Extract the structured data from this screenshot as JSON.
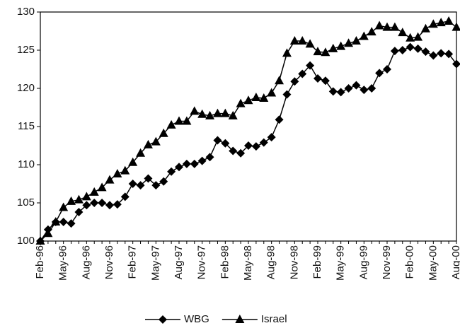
{
  "chart_data": {
    "type": "line",
    "categories": [
      "Feb-96",
      null,
      null,
      "May-96",
      null,
      null,
      "Aug-96",
      null,
      null,
      "Nov-96",
      null,
      null,
      "Feb-97",
      null,
      null,
      "May-97",
      null,
      null,
      "Aug-97",
      null,
      null,
      "Nov-97",
      null,
      null,
      "Feb-98",
      null,
      null,
      "May-98",
      null,
      null,
      "Aug-98",
      null,
      null,
      "Nov-98",
      null,
      null,
      "Feb-99",
      null,
      null,
      "May-99",
      null,
      null,
      "Aug-99",
      null,
      null,
      "Nov-99",
      null,
      null,
      "Feb-00",
      null,
      null,
      "May-00",
      null,
      null,
      "Aug-00"
    ],
    "series": [
      {
        "name": "WBG",
        "color": "#000000",
        "marker": "diamond",
        "values": [
          100,
          101.5,
          102.5,
          102.5,
          102.3,
          103.8,
          104.7,
          105,
          105,
          104.7,
          104.8,
          105.8,
          107.5,
          107.3,
          108.2,
          107.3,
          107.8,
          109.1,
          109.7,
          110.1,
          110.1,
          110.5,
          111,
          113.2,
          112.8,
          111.8,
          111.5,
          112.5,
          112.4,
          112.9,
          113.6,
          115.9,
          119.2,
          120.9,
          121.9,
          123,
          121.3,
          121,
          119.6,
          119.5,
          120,
          120.4,
          119.8,
          120,
          122,
          122.5,
          124.9,
          125,
          125.4,
          125.2,
          124.8,
          124.3,
          124.6,
          124.5,
          123.2
        ]
      },
      {
        "name": "Israel",
        "color": "#000000",
        "marker": "triangle",
        "values": [
          100,
          101,
          102.5,
          104.4,
          105.2,
          105.4,
          105.8,
          106.4,
          107,
          108,
          108.8,
          109.2,
          110.3,
          111.5,
          112.6,
          113,
          114.1,
          115.2,
          115.7,
          115.7,
          117,
          116.6,
          116.4,
          116.7,
          116.7,
          116.4,
          118,
          118.4,
          118.8,
          118.7,
          119.4,
          121,
          124.6,
          126.2,
          126.2,
          125.8,
          124.8,
          124.7,
          125.2,
          125.5,
          125.9,
          126.2,
          126.8,
          127.4,
          128.2,
          128,
          128,
          127.3,
          126.6,
          126.7,
          127.8,
          128.4,
          128.6,
          128.8,
          128
        ]
      }
    ],
    "ylim": [
      100,
      130
    ],
    "yticks": [
      100,
      105,
      110,
      115,
      120,
      125,
      130
    ],
    "grid": false,
    "legend": "bottom"
  }
}
